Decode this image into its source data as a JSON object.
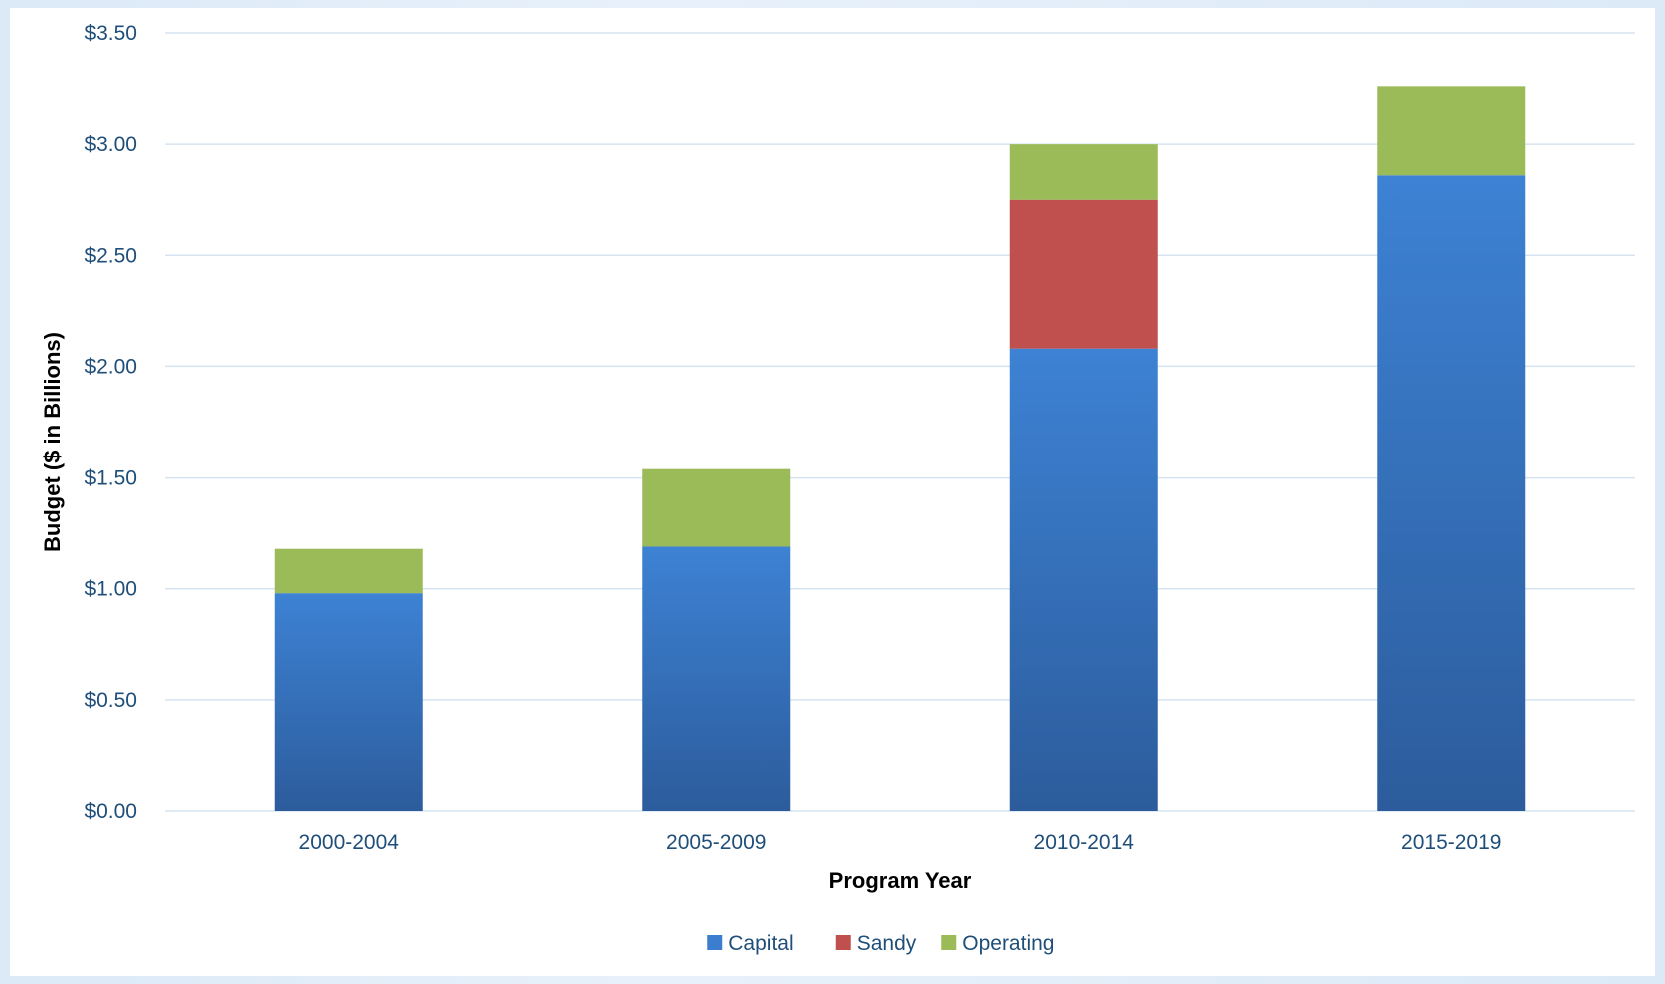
{
  "chart_data": {
    "type": "bar",
    "stacked": true,
    "categories": [
      "2000-2004",
      "2005-2009",
      "2010-2014",
      "2015-2019"
    ],
    "series": [
      {
        "name": "Capital",
        "values": [
          0.98,
          1.19,
          2.08,
          2.86
        ],
        "color": "#3b7dce"
      },
      {
        "name": "Sandy",
        "values": [
          0,
          0,
          0.67,
          0
        ],
        "color": "#c0504d"
      },
      {
        "name": "Operating",
        "values": [
          0.2,
          0.35,
          0.25,
          0.4
        ],
        "color": "#9bbb59"
      }
    ],
    "xlabel": "Program Year",
    "ylabel": "Budget ($ in Billions)",
    "ylim": [
      0,
      3.5
    ],
    "yticks": [
      "$0.00",
      "$0.50",
      "$1.00",
      "$1.50",
      "$2.00",
      "$2.50",
      "$3.00",
      "$3.50"
    ],
    "ytick_values": [
      0,
      0.5,
      1.0,
      1.5,
      2.0,
      2.5,
      3.0,
      3.5
    ],
    "grid": true,
    "legend_position": "bottom"
  }
}
